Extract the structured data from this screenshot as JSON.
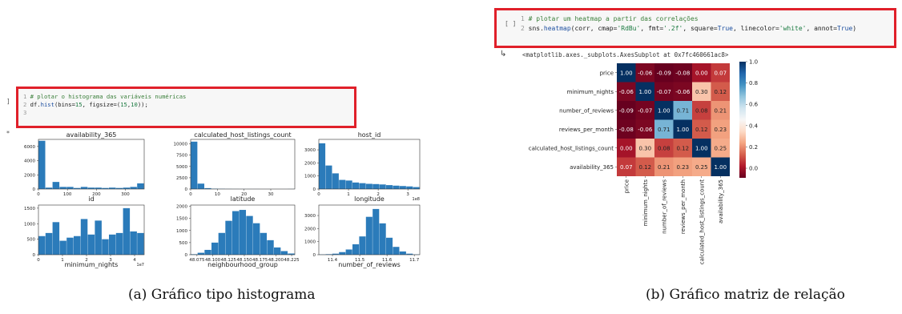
{
  "left": {
    "cell_gutter": "]",
    "output_marker": "*",
    "code": [
      {
        "ln": "1",
        "parts": [
          {
            "c": "cm",
            "t": "# plotar o histograma das variáveis numéricas"
          }
        ]
      },
      {
        "ln": "2",
        "parts": [
          {
            "c": "",
            "t": "df."
          },
          {
            "c": "fn",
            "t": "hist"
          },
          {
            "c": "",
            "t": "(bins="
          },
          {
            "c": "num",
            "t": "15"
          },
          {
            "c": "",
            "t": ", figsize=("
          },
          {
            "c": "num",
            "t": "15"
          },
          {
            "c": "",
            "t": ","
          },
          {
            "c": "num",
            "t": "10"
          },
          {
            "c": "",
            "t": "));"
          }
        ]
      },
      {
        "ln": "3",
        "parts": []
      }
    ],
    "caption": "(a)  Gráfico tipo histograma"
  },
  "right": {
    "cell_gutter": "[ ]",
    "output_icon": "↳",
    "output_text": "<matplotlib.axes._subplots.AxesSubplot at 0x7fc460661ac8>",
    "code": [
      {
        "ln": "1",
        "parts": [
          {
            "c": "cm",
            "t": "# plotar um heatmap a partir das correlações"
          }
        ]
      },
      {
        "ln": "2",
        "parts": [
          {
            "c": "",
            "t": "sns."
          },
          {
            "c": "fn",
            "t": "heatmap"
          },
          {
            "c": "",
            "t": "(corr, cmap="
          },
          {
            "c": "num",
            "t": "'RdBu'"
          },
          {
            "c": "",
            "t": ", fmt="
          },
          {
            "c": "num",
            "t": "'.2f'"
          },
          {
            "c": "",
            "t": ", square="
          },
          {
            "c": "fn",
            "t": "True"
          },
          {
            "c": "",
            "t": ", linecolor="
          },
          {
            "c": "num",
            "t": "'white'"
          },
          {
            "c": "",
            "t": ", annot="
          },
          {
            "c": "fn",
            "t": "True"
          },
          {
            "c": "",
            "t": ")"
          }
        ]
      }
    ],
    "caption": "(b)  Gráfico matriz de relação"
  },
  "chart_data": [
    {
      "type": "bar",
      "title": "availability_365",
      "xticks": [
        "0",
        "100",
        "200",
        "300"
      ],
      "yticks": [
        "0",
        "2000",
        "4000",
        "6000"
      ],
      "xlim": [
        0,
        365
      ],
      "ylim": [
        0,
        7000
      ],
      "values": [
        6800,
        200,
        1000,
        300,
        300,
        150,
        300,
        200,
        200,
        150,
        200,
        150,
        200,
        300,
        800
      ],
      "xlabel": "id"
    },
    {
      "type": "bar",
      "title": "calculated_host_listings_count",
      "xticks": [
        "0",
        "10",
        "20",
        "30"
      ],
      "yticks": [
        "0",
        "2500",
        "5000",
        "7500",
        "10000"
      ],
      "xlim": [
        0,
        39
      ],
      "ylim": [
        0,
        11000
      ],
      "values": [
        10500,
        1200,
        200,
        80,
        50,
        30,
        20,
        10,
        10,
        10,
        5,
        5,
        5,
        5,
        20
      ],
      "xlabel": "latitude"
    },
    {
      "type": "bar",
      "title": "host_id",
      "xticks": [
        "0",
        "1",
        "2",
        "3"
      ],
      "yticks": [
        "0",
        "1000",
        "2000",
        "3000"
      ],
      "xlim": [
        0,
        3.4
      ],
      "ylim": [
        0,
        3800
      ],
      "values": [
        3500,
        1800,
        1200,
        700,
        650,
        500,
        450,
        400,
        380,
        350,
        300,
        260,
        230,
        200,
        150
      ],
      "xlabel": "longitude",
      "exponent": "1e8"
    },
    {
      "type": "bar",
      "title": "",
      "xticks": [
        "0",
        "1",
        "2",
        "3",
        "4"
      ],
      "yticks": [
        "0",
        "500",
        "1000",
        "1500"
      ],
      "xlim": [
        0,
        4.4
      ],
      "ylim": [
        0,
        1600
      ],
      "values": [
        600,
        700,
        1050,
        450,
        550,
        600,
        1150,
        650,
        1100,
        500,
        650,
        700,
        1500,
        750,
        700
      ],
      "xlabel": "minimum_nights",
      "exponent": "1e7"
    },
    {
      "type": "bar",
      "title": "",
      "xticks": [
        "48.075",
        "48.100",
        "48.125",
        "48.150",
        "48.175",
        "48.200",
        "48.225"
      ],
      "yticks": [
        "0",
        "500",
        "1000",
        "1500",
        "2000"
      ],
      "xlim": [
        48.065,
        48.23
      ],
      "ylim": [
        0,
        2050
      ],
      "values": [
        20,
        80,
        200,
        500,
        900,
        1400,
        1800,
        1850,
        1600,
        1300,
        900,
        600,
        300,
        150,
        50
      ],
      "xlabel": "neighbourhood_group"
    },
    {
      "type": "bar",
      "title": "",
      "xticks": [
        "11.4",
        "11.5",
        "11.6",
        "11.7"
      ],
      "yticks": [
        "0",
        "1000",
        "2000",
        "3000"
      ],
      "xlim": [
        11.35,
        11.72
      ],
      "ylim": [
        0,
        3800
      ],
      "values": [
        20,
        40,
        80,
        200,
        400,
        800,
        1400,
        2900,
        3500,
        2400,
        1300,
        600,
        250,
        80,
        20
      ],
      "xlabel": "number_of_reviews"
    },
    {
      "type": "heatmap",
      "labels": [
        "price",
        "minimum_nights",
        "number_of_reviews",
        "reviews_per_month",
        "calculated_host_listings_count",
        "availability_365"
      ],
      "values": [
        [
          1.0,
          -0.06,
          -0.09,
          -0.08,
          0.0,
          0.07
        ],
        [
          -0.06,
          1.0,
          -0.07,
          -0.06,
          0.3,
          0.12
        ],
        [
          -0.09,
          -0.07,
          1.0,
          0.71,
          0.08,
          0.21
        ],
        [
          -0.08,
          -0.06,
          0.71,
          1.0,
          0.12,
          0.23
        ],
        [
          0.0,
          0.3,
          0.08,
          0.12,
          1.0,
          0.25
        ],
        [
          0.07,
          0.12,
          0.21,
          0.23,
          0.25,
          1.0
        ]
      ],
      "colorbar_ticks": [
        "0.0",
        "0.2",
        "0.4",
        "0.6",
        "0.8",
        "1.0"
      ],
      "colorbar_range": [
        -0.09,
        1.0
      ],
      "cmap": "RdBu"
    }
  ]
}
